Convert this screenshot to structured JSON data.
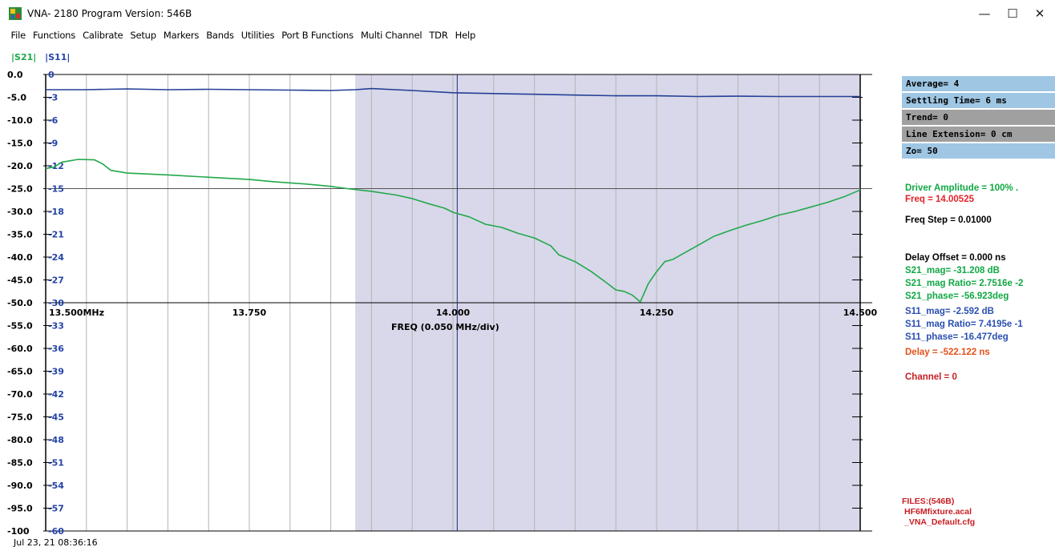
{
  "window": {
    "title": "VNA- 2180   Program Version: 546B",
    "controls": {
      "minimize": "—",
      "maximize": "☐",
      "close": "✕"
    }
  },
  "menu": [
    "File",
    "Functions",
    "Calibrate",
    "Setup",
    "Markers",
    "Bands",
    "Utilities",
    "Port B Functions",
    "Multi Channel",
    "TDR",
    "Help"
  ],
  "traces": {
    "s21_label": "|S21|",
    "s11_label": "|S11|"
  },
  "colors": {
    "s21": "#22a84a",
    "s11": "#243f96",
    "shade": "#d8d8ea",
    "panel_blue": "#9fc7e4",
    "panel_gray": "#a0a0a0"
  },
  "y_axis_left": [
    "0.0",
    "-5.0",
    "-10.0",
    "-15.0",
    "-20.0",
    "-25.0",
    "-30.0",
    "-35.0",
    "-40.0",
    "-45.0",
    "-50.0",
    "-55.0",
    "-60.0",
    "-65.0",
    "-70.0",
    "-75.0",
    "-80.0",
    "-85.0",
    "-90.0",
    "-95.0",
    "-100"
  ],
  "y_axis_right": [
    "0",
    "-3",
    "-6",
    "-9",
    "-12",
    "-15",
    "-18",
    "-21",
    "-24",
    "-27",
    "-30",
    "-33",
    "-36",
    "-39",
    "-42",
    "-45",
    "-48",
    "-51",
    "-54",
    "-57",
    "-60"
  ],
  "x_labels": [
    "13.500MHz",
    "13.750",
    "14.000",
    "14.250",
    "14.500"
  ],
  "freq_label": "FREQ (0.050 MHz/div)",
  "settings_boxes": [
    {
      "text": "Average= 4",
      "style": "blue"
    },
    {
      "text": "Settling Time= 6 ms",
      "style": "blue"
    },
    {
      "text": "Trend= 0",
      "style": "gray"
    },
    {
      "text": "Line Extension= 0 cm",
      "style": "gray"
    },
    {
      "text": "Zo= 50",
      "style": "blue"
    }
  ],
  "readouts": {
    "driver_amplitude": "Driver Amplitude = 100% .",
    "freq": "Freq = 14.00525",
    "freq_step": "Freq Step = 0.01000",
    "delay_offset": "Delay Offset =  0.000 ns",
    "s21_mag": "S21_mag= -31.208 dB",
    "s21_ratio": "S21_mag Ratio= 2.7516e -2",
    "s21_phase": "S21_phase= -56.923deg",
    "s11_mag": "S11_mag= -2.592 dB",
    "s11_ratio": "S11_mag Ratio= 7.4195e -1",
    "s11_phase": "S11_phase= -16.477deg",
    "delay": "Delay = -522.122 ns",
    "channel": "Channel = 0"
  },
  "files": {
    "header": "FILES:(546B)",
    "cal": "HF6Mfixture.acal",
    "cfg": "_VNA_Default.cfg"
  },
  "timestamp": "Jul 23, 21  08:36:16",
  "chart_data": {
    "type": "line",
    "x_unit": "MHz",
    "xlim": [
      13.5,
      14.5
    ],
    "ylim_left": [
      -100,
      0
    ],
    "ylim_right": [
      -60,
      0
    ],
    "shaded_range": [
      13.88,
      14.5
    ],
    "marker_freq": 14.00525,
    "reference_level": -25,
    "series": [
      {
        "name": "|S21|",
        "axis": "left",
        "points": [
          [
            13.5,
            -20.6
          ],
          [
            13.51,
            -20.3
          ],
          [
            13.52,
            -19.2
          ],
          [
            13.54,
            -18.6
          ],
          [
            13.56,
            -18.7
          ],
          [
            13.57,
            -19.6
          ],
          [
            13.58,
            -21.0
          ],
          [
            13.6,
            -21.6
          ],
          [
            13.65,
            -22.0
          ],
          [
            13.7,
            -22.5
          ],
          [
            13.75,
            -23.0
          ],
          [
            13.78,
            -23.5
          ],
          [
            13.82,
            -24.0
          ],
          [
            13.85,
            -24.5
          ],
          [
            13.87,
            -25.0
          ],
          [
            13.9,
            -25.6
          ],
          [
            13.93,
            -26.4
          ],
          [
            13.95,
            -27.2
          ],
          [
            13.97,
            -28.3
          ],
          [
            13.99,
            -29.3
          ],
          [
            14.0,
            -30.2
          ],
          [
            14.02,
            -31.2
          ],
          [
            14.04,
            -32.8
          ],
          [
            14.06,
            -33.5
          ],
          [
            14.08,
            -34.8
          ],
          [
            14.1,
            -35.8
          ],
          [
            14.12,
            -37.5
          ],
          [
            14.13,
            -39.5
          ],
          [
            14.15,
            -41.0
          ],
          [
            14.17,
            -43.2
          ],
          [
            14.19,
            -45.8
          ],
          [
            14.2,
            -47.2
          ],
          [
            14.21,
            -47.5
          ],
          [
            14.22,
            -48.3
          ],
          [
            14.23,
            -49.8
          ],
          [
            14.24,
            -45.8
          ],
          [
            14.25,
            -43.2
          ],
          [
            14.26,
            -41.0
          ],
          [
            14.27,
            -40.5
          ],
          [
            14.28,
            -39.5
          ],
          [
            14.3,
            -37.5
          ],
          [
            14.32,
            -35.5
          ],
          [
            14.34,
            -34.2
          ],
          [
            14.36,
            -33.0
          ],
          [
            14.38,
            -32.0
          ],
          [
            14.4,
            -30.8
          ],
          [
            14.42,
            -30.0
          ],
          [
            14.44,
            -29.0
          ],
          [
            14.46,
            -28.0
          ],
          [
            14.48,
            -26.8
          ],
          [
            14.5,
            -25.3
          ]
        ]
      },
      {
        "name": "|S11|",
        "axis": "right",
        "points": [
          [
            13.5,
            -2.0
          ],
          [
            13.55,
            -2.0
          ],
          [
            13.6,
            -1.9
          ],
          [
            13.65,
            -2.0
          ],
          [
            13.7,
            -1.95
          ],
          [
            13.75,
            -2.0
          ],
          [
            13.8,
            -2.05
          ],
          [
            13.85,
            -2.1
          ],
          [
            13.88,
            -2.0
          ],
          [
            13.9,
            -1.85
          ],
          [
            13.95,
            -2.1
          ],
          [
            14.0,
            -2.4
          ],
          [
            14.05,
            -2.5
          ],
          [
            14.1,
            -2.6
          ],
          [
            14.15,
            -2.7
          ],
          [
            14.2,
            -2.8
          ],
          [
            14.25,
            -2.8
          ],
          [
            14.3,
            -2.9
          ],
          [
            14.35,
            -2.85
          ],
          [
            14.4,
            -2.9
          ],
          [
            14.45,
            -2.9
          ],
          [
            14.5,
            -2.9
          ]
        ]
      }
    ]
  }
}
